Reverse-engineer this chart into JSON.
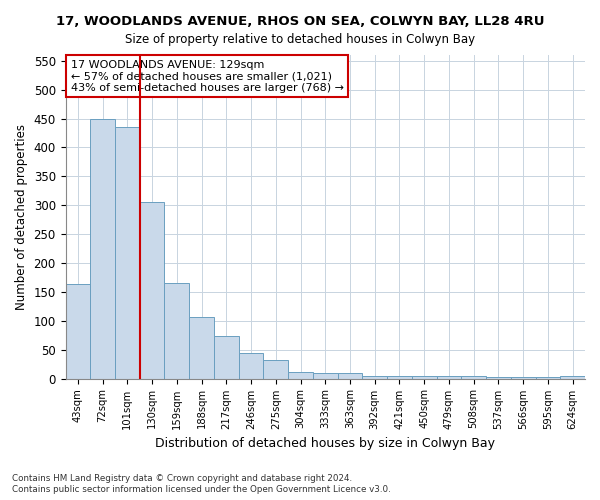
{
  "title": "17, WOODLANDS AVENUE, RHOS ON SEA, COLWYN BAY, LL28 4RU",
  "subtitle": "Size of property relative to detached houses in Colwyn Bay",
  "xlabel": "Distribution of detached houses by size in Colwyn Bay",
  "ylabel": "Number of detached properties",
  "categories": [
    "43sqm",
    "72sqm",
    "101sqm",
    "130sqm",
    "159sqm",
    "188sqm",
    "217sqm",
    "246sqm",
    "275sqm",
    "304sqm",
    "333sqm",
    "363sqm",
    "392sqm",
    "421sqm",
    "450sqm",
    "479sqm",
    "508sqm",
    "537sqm",
    "566sqm",
    "595sqm",
    "624sqm"
  ],
  "values": [
    163,
    450,
    435,
    305,
    165,
    106,
    73,
    44,
    33,
    11,
    10,
    9,
    5,
    5,
    4,
    4,
    4,
    3,
    3,
    2,
    5
  ],
  "bar_color": "#c9d9ea",
  "bar_edge_color": "#6a9fc0",
  "property_line_color": "#cc0000",
  "annotation_text": "17 WOODLANDS AVENUE: 129sqm\n← 57% of detached houses are smaller (1,021)\n43% of semi-detached houses are larger (768) →",
  "annotation_box_color": "#ffffff",
  "annotation_box_edge_color": "#cc0000",
  "ylim": [
    0,
    560
  ],
  "yticks": [
    0,
    50,
    100,
    150,
    200,
    250,
    300,
    350,
    400,
    450,
    500,
    550
  ],
  "footer_line1": "Contains HM Land Registry data © Crown copyright and database right 2024.",
  "footer_line2": "Contains public sector information licensed under the Open Government Licence v3.0.",
  "background_color": "#ffffff",
  "grid_color": "#c8d4e0"
}
